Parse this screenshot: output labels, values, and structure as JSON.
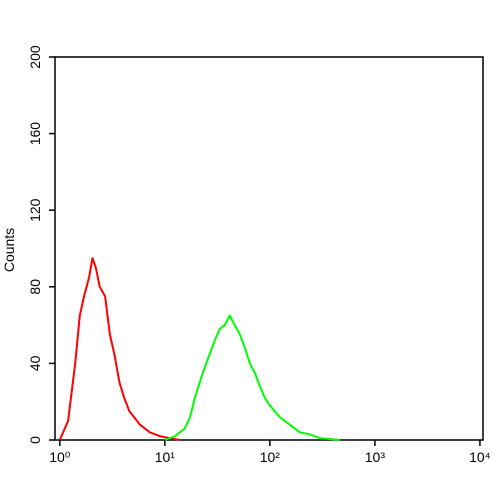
{
  "chart_data": {
    "type": "line",
    "y_label": "Counts",
    "xscale": "log",
    "xlim": [
      0.9,
      10700
    ],
    "ylim": [
      0,
      200
    ],
    "xticks": [
      {
        "value": 1,
        "label": "10⁰"
      },
      {
        "value": 10,
        "label": "10¹"
      },
      {
        "value": 100,
        "label": "10²"
      },
      {
        "value": 1000,
        "label": "10³"
      },
      {
        "value": 10000,
        "label": "10⁴"
      }
    ],
    "yticks": [
      0,
      40,
      80,
      120,
      160,
      200
    ],
    "grid": false,
    "series": [
      {
        "color": "#ff0000",
        "x": [
          1,
          1.2,
          1.4,
          1.55,
          1.7,
          1.9,
          2.05,
          2.2,
          2.4,
          2.7,
          3.0,
          3.3,
          3.7,
          4.1,
          4.6,
          5.8,
          7.2,
          9,
          11,
          14
        ],
        "values": [
          0,
          10,
          40,
          65,
          75,
          85,
          95,
          90,
          80,
          75,
          55,
          45,
          30,
          22,
          15,
          8,
          4,
          2,
          1,
          0
        ]
      },
      {
        "color": "#00ff00",
        "x": [
          10,
          12.5,
          15.5,
          17.4,
          19.3,
          21.5,
          24,
          26.8,
          29.9,
          33.4,
          37.2,
          41.5,
          46.4,
          51.8,
          57.8,
          64.5,
          72,
          80.3,
          89.6,
          100,
          124,
          155,
          193,
          240,
          298,
          464
        ],
        "values": [
          0,
          2,
          6,
          12,
          22,
          30,
          38,
          45,
          52,
          58,
          60,
          65,
          60,
          55,
          48,
          40,
          35,
          28,
          22,
          18,
          12,
          8,
          4,
          3,
          1,
          0
        ]
      }
    ]
  }
}
